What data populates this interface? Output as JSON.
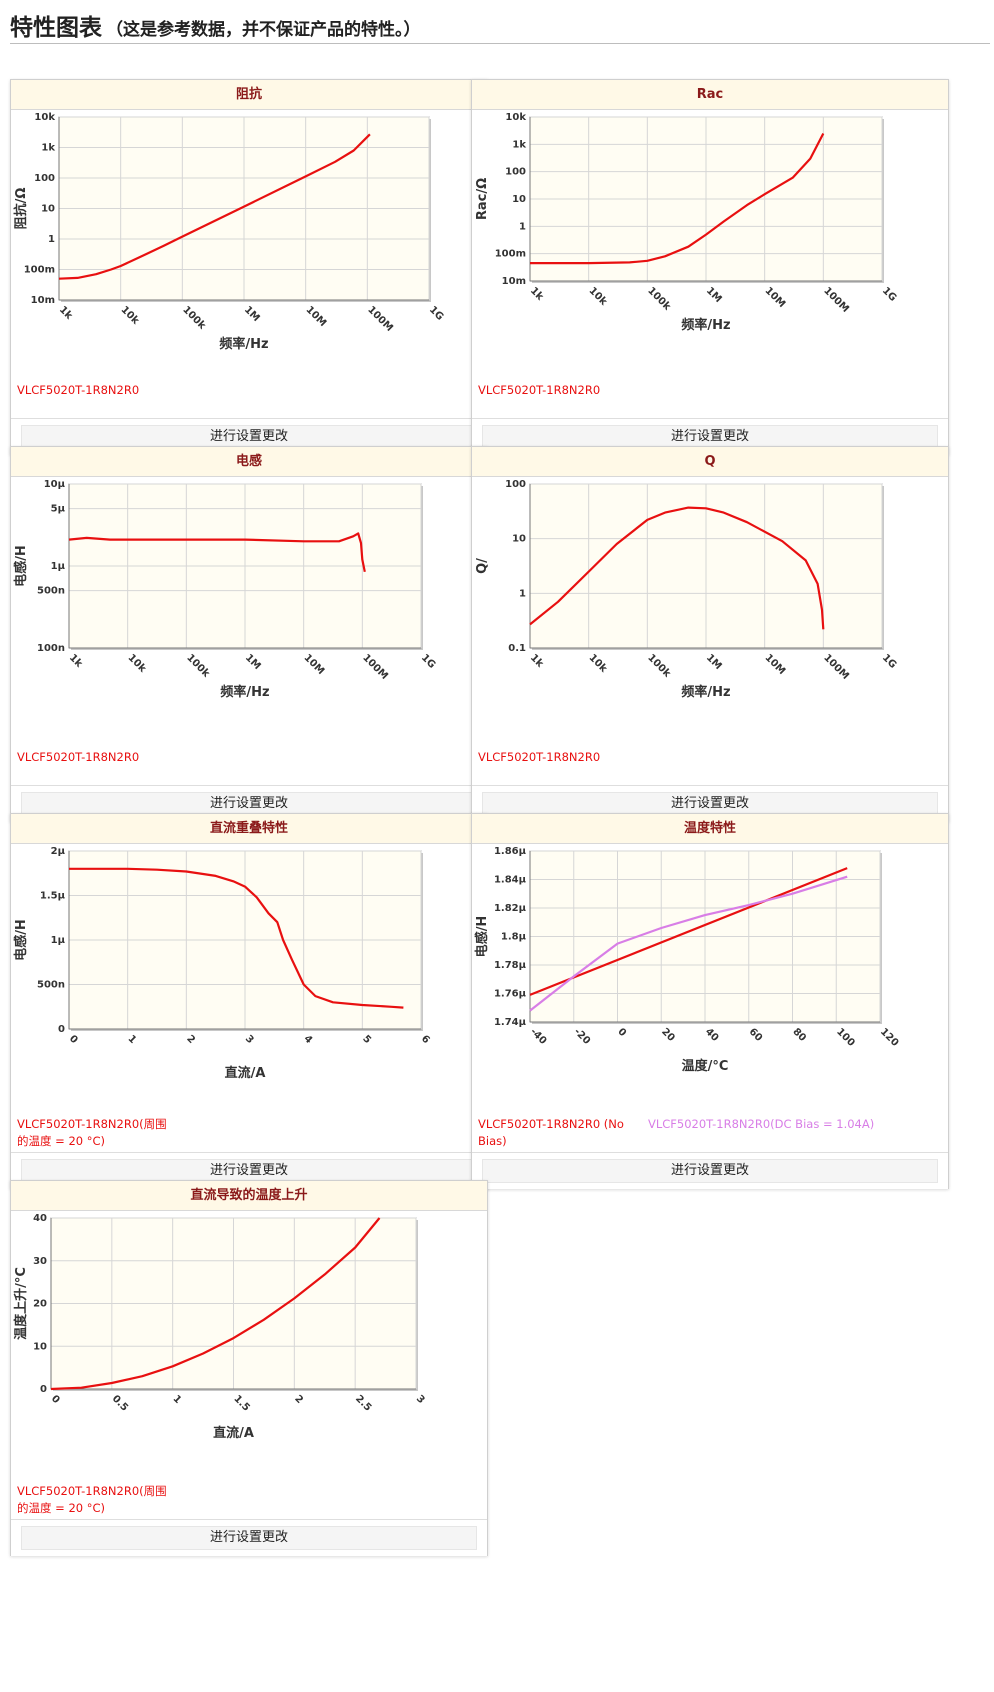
{
  "header": {
    "title": "特性图表",
    "note": "（这是参考数据，并不保证产品的特性。）"
  },
  "colors": {
    "series_main": "#e81010",
    "series_alt": "#d87ee6"
  },
  "change_button_label": "进行设置更改",
  "panels": [
    {
      "title": "阻抗",
      "legend": [
        "VLCF5020T-1R8N2R0"
      ],
      "chart_data": {
        "type": "line",
        "x_scale": "log",
        "y_scale": "log",
        "xlim": [
          1000,
          1000000000
        ],
        "ylim": [
          0.01,
          10000
        ],
        "xticks": [
          1000,
          10000,
          100000,
          1000000,
          10000000,
          100000000,
          1000000000
        ],
        "xtick_labels": [
          "1k",
          "10k",
          "100k",
          "1M",
          "10M",
          "100M",
          "1G"
        ],
        "yticks": [
          0.01,
          0.1,
          1,
          10,
          100,
          1000,
          10000
        ],
        "ytick_labels": [
          "10m",
          "100m",
          "1",
          "10",
          "100",
          "1k",
          "10k"
        ],
        "xlabel": "频率/Hz",
        "ylabel": "阻抗/Ω",
        "grid": true,
        "series": [
          {
            "name": "VLCF5020T-1R8N2R0",
            "color": "#e81010",
            "x": [
              1000,
              2000,
              4000,
              7000,
              10000,
              20000,
              50000,
              100000,
              1000000,
              10000000,
              30000000,
              60000000,
              90000000,
              110000000
            ],
            "y": [
              0.05,
              0.053,
              0.07,
              0.1,
              0.13,
              0.25,
              0.6,
              1.2,
              11.5,
              113,
              340,
              800,
              1800,
              2700
            ]
          }
        ]
      }
    },
    {
      "title": "Rac",
      "legend": [
        "VLCF5020T-1R8N2R0"
      ],
      "chart_data": {
        "type": "line",
        "x_scale": "log",
        "y_scale": "log",
        "xlim": [
          1000,
          1000000000
        ],
        "ylim": [
          0.01,
          10000
        ],
        "xticks": [
          1000,
          10000,
          100000,
          1000000,
          10000000,
          100000000,
          1000000000
        ],
        "xtick_labels": [
          "1k",
          "10k",
          "100k",
          "1M",
          "10M",
          "100M",
          "1G"
        ],
        "yticks": [
          0.01,
          0.1,
          1,
          10,
          100,
          1000,
          10000
        ],
        "ytick_labels": [
          "10m",
          "100m",
          "1",
          "10",
          "100",
          "1k",
          "10k"
        ],
        "xlabel": "频率/Hz",
        "ylabel": "Rac/Ω",
        "grid": true,
        "series": [
          {
            "name": "VLCF5020T-1R8N2R0",
            "color": "#e81010",
            "x": [
              1000,
              10000,
              50000,
              100000,
              200000,
              500000,
              1000000,
              2000000,
              5000000,
              10000000,
              30000000,
              60000000,
              100000000
            ],
            "y": [
              0.045,
              0.045,
              0.048,
              0.055,
              0.08,
              0.18,
              0.5,
              1.5,
              6,
              15,
              60,
              300,
              2500
            ]
          }
        ]
      }
    },
    {
      "title": "电感",
      "legend": [
        "VLCF5020T-1R8N2R0"
      ],
      "chart_data": {
        "type": "line",
        "x_scale": "log",
        "y_scale": "log",
        "xlim": [
          1000,
          1000000000
        ],
        "ylim": [
          1e-07,
          1e-05
        ],
        "xticks": [
          1000,
          10000,
          100000,
          1000000,
          10000000,
          100000000,
          1000000000
        ],
        "xtick_labels": [
          "1k",
          "10k",
          "100k",
          "1M",
          "10M",
          "100M",
          "1G"
        ],
        "yticks": [
          1e-07,
          5e-07,
          1e-06,
          5e-06,
          1e-05
        ],
        "ytick_labels": [
          "100n",
          "500n",
          "1µ",
          "5µ",
          "10µ"
        ],
        "xlabel": "频率/Hz",
        "ylabel": "电感/H",
        "grid": true,
        "series": [
          {
            "name": "VLCF5020T-1R8N2R0",
            "color": "#e81010",
            "x": [
              1000,
              2000,
              5000,
              10000,
              100000,
              1000000,
              10000000,
              40000000,
              70000000,
              85000000,
              95000000,
              100000000,
              110000000
            ],
            "y": [
              2.1e-06,
              2.2e-06,
              2.1e-06,
              2.1e-06,
              2.1e-06,
              2.1e-06,
              2e-06,
              2e-06,
              2.3e-06,
              2.5e-06,
              1.9e-06,
              1.2e-06,
              8.5e-07
            ]
          }
        ]
      }
    },
    {
      "title": "Q",
      "legend": [
        "VLCF5020T-1R8N2R0"
      ],
      "chart_data": {
        "type": "line",
        "x_scale": "log",
        "y_scale": "log",
        "xlim": [
          1000,
          1000000000
        ],
        "ylim": [
          0.1,
          100
        ],
        "xticks": [
          1000,
          10000,
          100000,
          1000000,
          10000000,
          100000000,
          1000000000
        ],
        "xtick_labels": [
          "1k",
          "10k",
          "100k",
          "1M",
          "10M",
          "100M",
          "1G"
        ],
        "yticks": [
          0.1,
          1,
          10,
          100
        ],
        "ytick_labels": [
          "0.1",
          "1",
          "10",
          "100"
        ],
        "xlabel": "频率/Hz",
        "ylabel": "Q/",
        "grid": true,
        "series": [
          {
            "name": "VLCF5020T-1R8N2R0",
            "color": "#e81010",
            "x": [
              1000,
              3000,
              10000,
              30000,
              100000,
              200000,
              500000,
              1000000,
              2000000,
              5000000,
              20000000,
              50000000,
              80000000,
              95000000,
              100000000
            ],
            "y": [
              0.27,
              0.7,
              2.5,
              8,
              22,
              30,
              37,
              36,
              30,
              20,
              9,
              4,
              1.5,
              0.5,
              0.22
            ]
          }
        ]
      }
    },
    {
      "title": "直流重叠特性",
      "legend": [
        "VLCF5020T-1R8N2R0(周围的温度 = 20 °C)"
      ],
      "chart_data": {
        "type": "line",
        "x_scale": "linear",
        "y_scale": "linear",
        "xlim": [
          0,
          6
        ],
        "ylim": [
          0,
          2e-06
        ],
        "xticks": [
          0,
          1,
          2,
          3,
          4,
          5,
          6
        ],
        "xtick_labels": [
          "0",
          "1",
          "2",
          "3",
          "4",
          "5",
          "6"
        ],
        "yticks": [
          0,
          5e-07,
          1e-06,
          1.5e-06,
          2e-06
        ],
        "ytick_labels": [
          "0",
          "500n",
          "1µ",
          "1.5µ",
          "2µ"
        ],
        "xlabel": "直流/A",
        "ylabel": "电感/H",
        "grid": true,
        "series": [
          {
            "name": "VLCF5020T-1R8N2R0(周围的温度 = 20 °C)",
            "color": "#e81010",
            "x": [
              0,
              0.5,
              1,
              1.5,
              2,
              2.5,
              2.8,
              3,
              3.2,
              3.4,
              3.55,
              3.65,
              3.8,
              4,
              4.2,
              4.5,
              5,
              5.5,
              5.7
            ],
            "y": [
              1.8e-06,
              1.8e-06,
              1.8e-06,
              1.79e-06,
              1.77e-06,
              1.72e-06,
              1.66e-06,
              1.6e-06,
              1.48e-06,
              1.3e-06,
              1.2e-06,
              1e-06,
              7.8e-07,
              5e-07,
              3.7e-07,
              3e-07,
              2.7e-07,
              2.5e-07,
              2.4e-07
            ]
          }
        ]
      }
    },
    {
      "title": "温度特性",
      "legend": [
        "VLCF5020T-1R8N2R0 (No Bias)",
        "VLCF5020T-1R8N2R0(DC Bias = 1.04A)"
      ],
      "chart_data": {
        "type": "line",
        "x_scale": "linear",
        "y_scale": "linear",
        "xlim": [
          -40,
          120
        ],
        "ylim": [
          1.74e-06,
          1.86e-06
        ],
        "xticks": [
          -40,
          -20,
          0,
          20,
          40,
          60,
          80,
          100,
          120
        ],
        "xtick_labels": [
          "-40",
          "-20",
          "0",
          "20",
          "40",
          "60",
          "80",
          "100",
          "120"
        ],
        "yticks": [
          1.74e-06,
          1.76e-06,
          1.78e-06,
          1.8e-06,
          1.82e-06,
          1.84e-06,
          1.86e-06
        ],
        "ytick_labels": [
          "1.74µ",
          "1.76µ",
          "1.78µ",
          "1.8µ",
          "1.82µ",
          "1.84µ",
          "1.86µ"
        ],
        "xlabel": "温度/°C",
        "ylabel": "电感/H",
        "grid": true,
        "series": [
          {
            "name": "VLCF5020T-1R8N2R0 (No Bias)",
            "color": "#e81010",
            "x": [
              -40,
              105
            ],
            "y": [
              1.759e-06,
              1.848e-06
            ]
          },
          {
            "name": "VLCF5020T-1R8N2R0(DC Bias = 1.04A)",
            "color": "#d87ee6",
            "x": [
              -40,
              -20,
              0,
              20,
              40,
              60,
              80,
              105
            ],
            "y": [
              1.748e-06,
              1.772e-06,
              1.795e-06,
              1.806e-06,
              1.815e-06,
              1.822e-06,
              1.83e-06,
              1.842e-06
            ]
          }
        ]
      }
    },
    {
      "title": "直流导致的温度上升",
      "legend": [
        "VLCF5020T-1R8N2R0(周围的温度 = 20 °C)"
      ],
      "chart_data": {
        "type": "line",
        "x_scale": "linear",
        "y_scale": "linear",
        "xlim": [
          0,
          3
        ],
        "ylim": [
          0,
          40
        ],
        "xticks": [
          0,
          0.5,
          1,
          1.5,
          2,
          2.5,
          3
        ],
        "xtick_labels": [
          "0",
          "0.5",
          "1",
          "1.5",
          "2",
          "2.5",
          "3"
        ],
        "yticks": [
          0,
          10,
          20,
          30,
          40
        ],
        "ytick_labels": [
          "0",
          "10",
          "20",
          "30",
          "40"
        ],
        "xlabel": "直流/A",
        "ylabel": "温度上升/°C",
        "grid": true,
        "series": [
          {
            "name": "VLCF5020T-1R8N2R0(周围的温度 = 20 °C)",
            "color": "#e81010",
            "x": [
              0,
              0.25,
              0.5,
              0.75,
              1,
              1.25,
              1.5,
              1.75,
              2,
              2.25,
              2.5,
              2.7
            ],
            "y": [
              0,
              0.3,
              1.4,
              3,
              5.3,
              8.3,
              11.9,
              16.2,
              21.2,
              26.8,
              33.1,
              40
            ]
          }
        ]
      }
    }
  ]
}
